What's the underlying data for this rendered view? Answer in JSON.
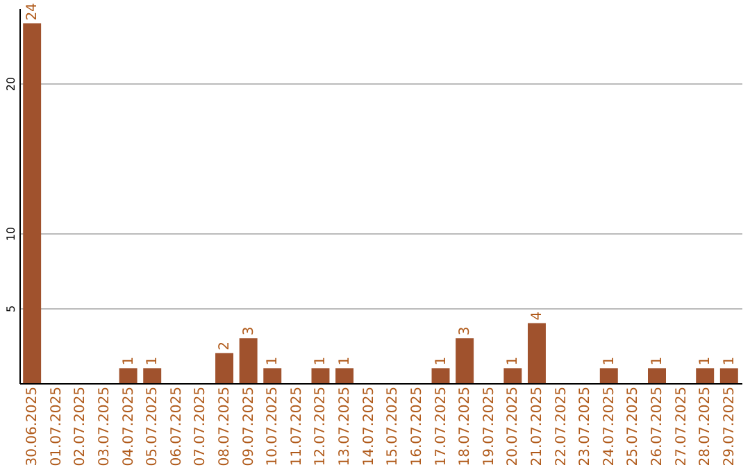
{
  "chart_data": {
    "type": "bar",
    "categories": [
      "30.06.2025",
      "01.07.2025",
      "02.07.2025",
      "03.07.2025",
      "04.07.2025",
      "05.07.2025",
      "06.07.2025",
      "07.07.2025",
      "08.07.2025",
      "09.07.2025",
      "10.07.2025",
      "11.07.2025",
      "12.07.2025",
      "13.07.2025",
      "14.07.2025",
      "15.07.2025",
      "16.07.2025",
      "17.07.2025",
      "18.07.2025",
      "19.07.2025",
      "20.07.2025",
      "21.07.2025",
      "22.07.2025",
      "23.07.2025",
      "24.07.2025",
      "25.07.2025",
      "26.07.2025",
      "27.07.2025",
      "28.07.2025",
      "29.07.2025"
    ],
    "values": [
      24,
      0,
      0,
      0,
      1,
      1,
      0,
      0,
      2,
      3,
      1,
      0,
      1,
      1,
      0,
      0,
      0,
      1,
      3,
      0,
      1,
      4,
      0,
      0,
      1,
      0,
      1,
      0,
      1,
      1
    ],
    "value_labels": [
      "24",
      null,
      null,
      null,
      "1",
      "1",
      null,
      null,
      "2",
      "3",
      "1",
      null,
      "1",
      "1",
      null,
      null,
      null,
      "1",
      "3",
      null,
      "1",
      "4",
      null,
      null,
      "1",
      null,
      "1",
      null,
      "1",
      "1"
    ],
    "color": "#a0522d",
    "ylim": [
      0,
      25
    ],
    "yticks": [
      5,
      10,
      20
    ],
    "grid": "y"
  }
}
